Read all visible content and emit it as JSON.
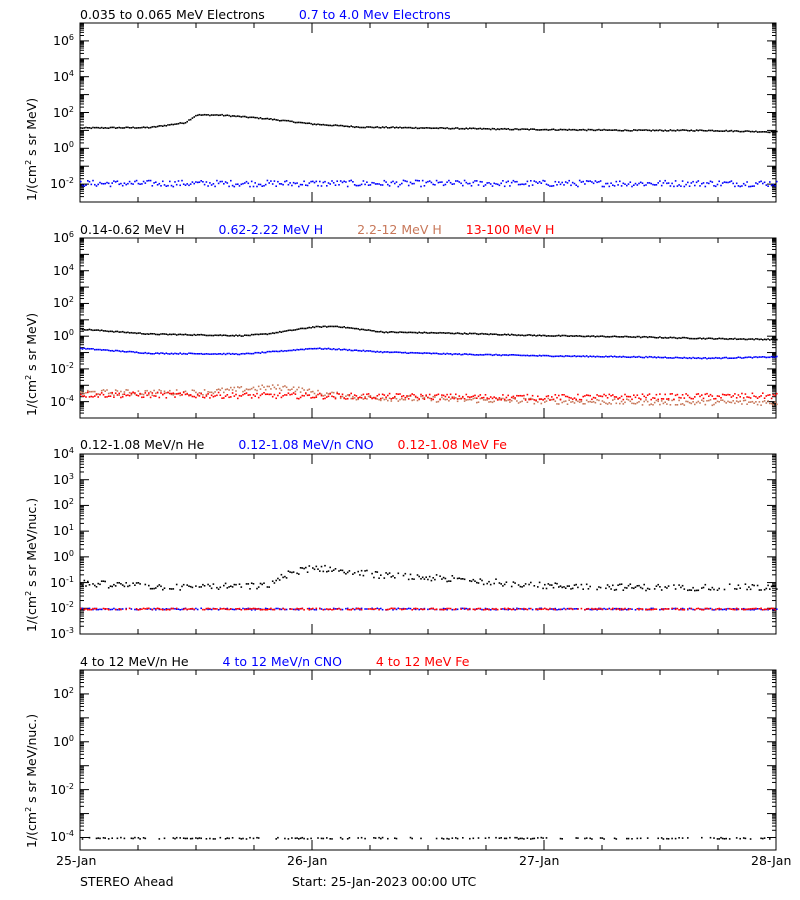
{
  "footer": {
    "spacecraft": "STEREO Ahead",
    "start": "Start: 25-Jan-2023 00:00 UTC"
  },
  "x_tick_labels": [
    "25-Jan",
    "26-Jan",
    "27-Jan",
    "28-Jan"
  ],
  "colors": {
    "black": "#000000",
    "blue": "#0000ff",
    "tan": "#c8785a",
    "red": "#ff0000"
  },
  "chart_data": [
    {
      "type": "scatter",
      "name": "electrons",
      "ylabel": "1/(cm2 s sr MeV)",
      "ylog": true,
      "ylim": [
        0.001,
        10000000
      ],
      "yticks": [
        {
          "exp": "-2"
        },
        {
          "exp": "0"
        },
        {
          "exp": "2"
        },
        {
          "exp": "4"
        },
        {
          "exp": "6"
        }
      ],
      "xlim_days": [
        0,
        3
      ],
      "series": [
        {
          "name": "0.035 to 0.065 MeV Electrons",
          "color": "#000000",
          "x": [
            0,
            0.3,
            0.45,
            0.5,
            0.6,
            0.8,
            1.0,
            1.2,
            1.5,
            1.8,
            2.1,
            2.4,
            2.7,
            3.0
          ],
          "y": [
            15,
            16,
            30,
            80,
            80,
            50,
            25,
            17,
            15,
            13,
            12,
            11,
            11,
            9
          ]
        },
        {
          "name": "0.7 to 4.0 Mev Electrons",
          "color": "#0000ff",
          "x": [
            0,
            1,
            2,
            3
          ],
          "y": [
            0.012,
            0.012,
            0.012,
            0.012
          ]
        }
      ]
    },
    {
      "type": "scatter",
      "name": "protons",
      "ylabel": "1/(cm2 s sr MeV)",
      "ylog": true,
      "ylim": [
        1e-05,
        1000000
      ],
      "yticks": [
        {
          "exp": "-4"
        },
        {
          "exp": "-2"
        },
        {
          "exp": "0"
        },
        {
          "exp": "2"
        },
        {
          "exp": "4"
        },
        {
          "exp": "6"
        }
      ],
      "xlim_days": [
        0,
        3
      ],
      "series": [
        {
          "name": "0.14-0.62 MeV H",
          "color": "#000000",
          "x": [
            0,
            0.3,
            0.7,
            0.8,
            1.0,
            1.1,
            1.3,
            1.6,
            2.0,
            2.4,
            2.7,
            3.0
          ],
          "y": [
            3,
            1.5,
            1.2,
            1.5,
            4,
            4.5,
            2,
            1.7,
            1.2,
            1.0,
            0.8,
            0.7
          ]
        },
        {
          "name": "0.62-2.22 MeV H",
          "color": "#0000ff",
          "x": [
            0,
            0.3,
            0.7,
            0.9,
            1.0,
            1.1,
            1.3,
            1.6,
            2.0,
            2.4,
            2.7,
            3.0
          ],
          "y": [
            0.2,
            0.1,
            0.09,
            0.15,
            0.2,
            0.18,
            0.12,
            0.09,
            0.07,
            0.06,
            0.05,
            0.06
          ]
        },
        {
          "name": "2.2-12 MeV H",
          "color": "#c8785a",
          "x": [
            0,
            0.5,
            0.8,
            0.9,
            1.0,
            1.2,
            1.6,
            2.0,
            2.5,
            3.0
          ],
          "y": [
            0.0004,
            0.0004,
            0.0008,
            0.0008,
            0.0004,
            0.0002,
            0.00015,
            0.00012,
            0.0001,
            0.0001
          ]
        },
        {
          "name": "13-100 MeV H",
          "color": "#ff0000",
          "x": [
            0,
            1,
            2,
            3
          ],
          "y": [
            0.0003,
            0.00025,
            0.0002,
            0.00025
          ]
        }
      ]
    },
    {
      "type": "scatter",
      "name": "heavy-low",
      "ylabel": "1/(cm2 s sr MeV/nuc.)",
      "ylog": true,
      "ylim": [
        0.001,
        10000
      ],
      "yticks": [
        {
          "exp": "-3"
        },
        {
          "exp": "-2"
        },
        {
          "exp": "-1"
        },
        {
          "exp": "0"
        },
        {
          "exp": "1"
        },
        {
          "exp": "2"
        },
        {
          "exp": "3"
        },
        {
          "exp": "4"
        }
      ],
      "xlim_days": [
        0,
        3
      ],
      "series": [
        {
          "name": "0.12-1.08 MeV/n He",
          "color": "#000000",
          "x": [
            0,
            0.4,
            0.8,
            0.9,
            1.0,
            1.1,
            1.3,
            1.6,
            2.0,
            2.4,
            3.0
          ],
          "y": [
            0.1,
            0.07,
            0.08,
            0.25,
            0.4,
            0.35,
            0.2,
            0.15,
            0.08,
            0.07,
            0.07
          ]
        },
        {
          "name": "0.12-1.08 MeV/n CNO",
          "color": "#0000ff",
          "x": [
            0,
            1,
            2,
            3
          ],
          "y": [
            0.01,
            0.01,
            0.01,
            0.01
          ]
        },
        {
          "name": "0.12-1.08 MeV Fe",
          "color": "#ff0000",
          "x": [
            0,
            1,
            2,
            3
          ],
          "y": [
            0.01,
            0.01,
            0.01,
            0.01
          ]
        }
      ]
    },
    {
      "type": "scatter",
      "name": "heavy-high",
      "ylabel": "1/(cm2 s sr MeV/nuc.)",
      "ylog": true,
      "ylim": [
        3e-05,
        1000
      ],
      "yticks": [
        {
          "exp": "-4"
        },
        {
          "exp": "-2"
        },
        {
          "exp": "0"
        },
        {
          "exp": "2"
        }
      ],
      "xlim_days": [
        0,
        3
      ],
      "series": [
        {
          "name": "4 to 12 MeV/n He",
          "color": "#000000",
          "x": [
            0,
            1,
            2,
            3
          ],
          "y": [
            0.0001,
            0.0001,
            0.0001,
            0.0001
          ]
        },
        {
          "name": "4 to 12 MeV/n CNO",
          "color": "#0000ff",
          "x": [],
          "y": []
        },
        {
          "name": "4 to 12 MeV Fe",
          "color": "#ff0000",
          "x": [],
          "y": []
        }
      ]
    }
  ]
}
